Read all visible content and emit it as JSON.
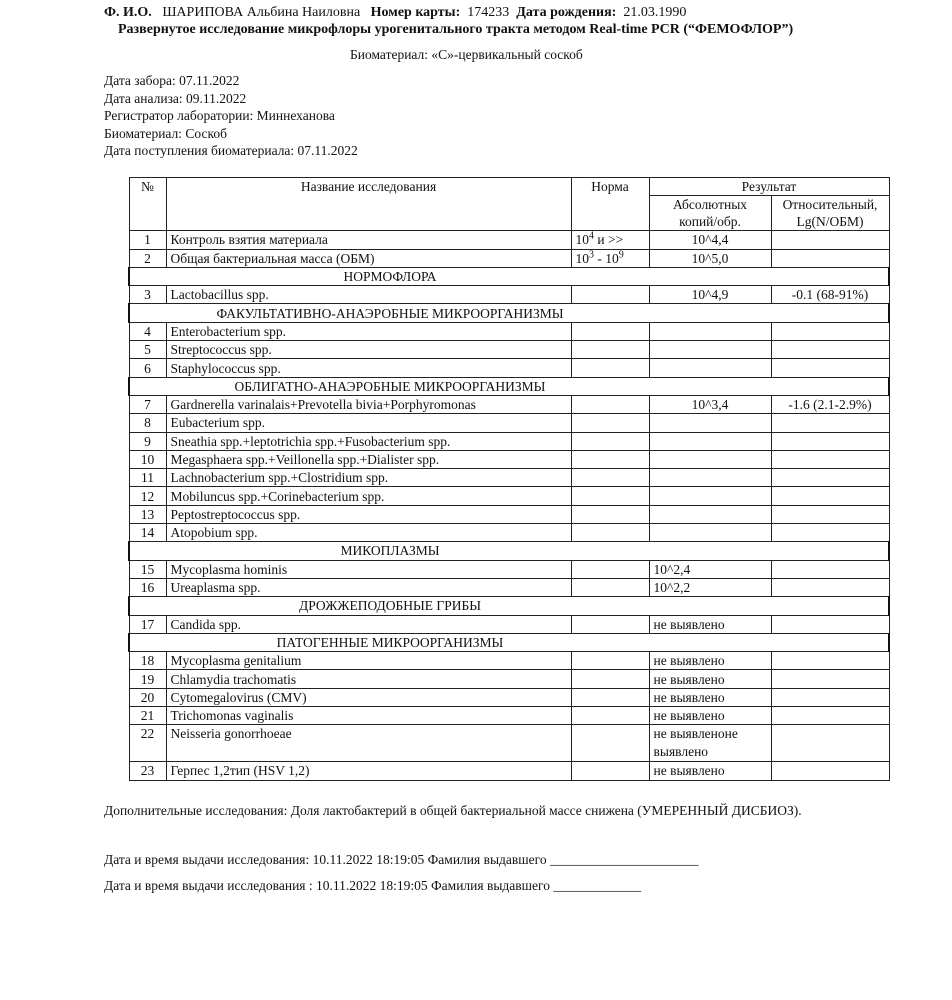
{
  "header": {
    "fio_label": "Ф. И.О.",
    "fio_value": "ШАРИПОВА Альбина Наиловна",
    "card_label": "Номер карты:",
    "card_value": "174233",
    "dob_label": "Дата рождения:",
    "dob_value": "21.03.1990",
    "title": "Развернутое исследование микрофлоры урогенитального тракта методом  Real-time PCR   (“ФЕМОФЛОР”)",
    "biomaterial_line": "Биоматериал: «С»-цервикальный соскоб"
  },
  "meta": [
    "Дата забора: 07.11.2022",
    "Дата анализа: 09.11.2022",
    "Регистратор лаборатории: Миннеханова",
    "Биоматериал: Соскоб",
    "Дата поступления биоматериала: 07.11.2022"
  ],
  "table": {
    "col_no": "№",
    "col_name": "Название исследования",
    "col_norm": "Норма",
    "col_result": "Результат",
    "col_abs": "Абсолютных копий/обр.",
    "col_rel": "Относительный, Lg(N/ОБМ)",
    "rows": [
      {
        "no": "1",
        "name": "Контроль взятия материала",
        "norm_a": "10",
        "norm_a_exp": "4",
        "norm_mid": " и >>",
        "abs": "10^4,4",
        "rel": ""
      },
      {
        "no": "2",
        "name": "Общая бактериальная масса (ОБМ)",
        "norm_a": "10",
        "norm_a_exp": "3",
        "norm_mid": " - ",
        "norm_b": "10",
        "norm_b_exp": "9",
        "abs": "10^5,0",
        "rel": ""
      },
      {
        "section": "НОРМОФЛОРА"
      },
      {
        "no": "3",
        "name": "Lactobacillus spp.",
        "abs": "10^4,9",
        "rel": "-0.1 (68-91%)"
      },
      {
        "section": "ФАКУЛЬТАТИВНО-АНАЭРОБНЫЕ МИКРООРГАНИЗМЫ"
      },
      {
        "no": "4",
        "name": "Enterobacterium spp."
      },
      {
        "no": "5",
        "name": "Streptococcus spp."
      },
      {
        "no": "6",
        "name": "Staphylococcus spp."
      },
      {
        "section": "ОБЛИГАТНО-АНАЭРОБНЫЕ МИКРООРГАНИЗМЫ"
      },
      {
        "no": "7",
        "name": "Gardnerella varinalais+Prevotella bivia+Porphyromonas",
        "abs": "10^3,4",
        "rel": "-1.6 (2.1-2.9%)"
      },
      {
        "no": "8",
        "name": "Eubacterium spp."
      },
      {
        "no": "9",
        "name": "Sneathia spp.+leptotrichia spp.+Fusobacterium spp."
      },
      {
        "no": "10",
        "name": "Megasphaera spp.+Veillonella spp.+Dialister spp."
      },
      {
        "no": "11",
        "name": "Lachnobacterium spp.+Clostridium spp."
      },
      {
        "no": "12",
        "name": "Mobiluncus spp.+Corinebacterium spp."
      },
      {
        "no": "13",
        "name": "Peptostreptococcus spp."
      },
      {
        "no": "14",
        "name": "Atopobium spp."
      },
      {
        "section": "МИКОПЛАЗМЫ"
      },
      {
        "no": "15",
        "name": "Mycoplasma hominis",
        "abs": "10^2,4",
        "left": true
      },
      {
        "no": "16",
        "name": "Ureaplasma spp.",
        "abs": "10^2,2",
        "left": true
      },
      {
        "section": "ДРОЖЖЕПОДОБНЫЕ ГРИБЫ"
      },
      {
        "no": "17",
        "name": "Candida spp.",
        "abs": "не выявлено",
        "left": true
      },
      {
        "section": "ПАТОГЕННЫЕ МИКРООРГАНИЗМЫ"
      },
      {
        "no": "18",
        "name": "Mycoplasma genitalium",
        "abs": " не выявлено",
        "left": true
      },
      {
        "no": "19",
        "name": "Chlamydia trachomatis",
        "abs": "не выявлено",
        "left": true
      },
      {
        "no": "20",
        "name": "Cytomegalovirus (CMV)",
        "abs": "не выявлено",
        "left": true
      },
      {
        "no": "21",
        "name": "Trichomonas vaginalis",
        "abs": "не выявлено",
        "left": true
      },
      {
        "no": "22",
        "name": "Neisseria gonorrhoeae",
        "abs": "не выявленоне выявлено",
        "left": true,
        "double": true
      },
      {
        "no": "23",
        "name": " Герпес 1,2тип (HSV 1,2)",
        "abs": "не выявлено",
        "left": true
      }
    ]
  },
  "footer": {
    "extra": "Дополнительные исследования: Доля лактобактерий в общей бактериальной массе снижена (УМЕРЕННЫЙ ДИСБИОЗ).",
    "issue1": "Дата и время выдачи исследования: 10.11.2022 18:19:05 Фамилия выдавшего ______________________",
    "issue2": "Дата и время  выдачи исследования : 10.11.2022 18:19:05      Фамилия выдавшего _____________"
  }
}
